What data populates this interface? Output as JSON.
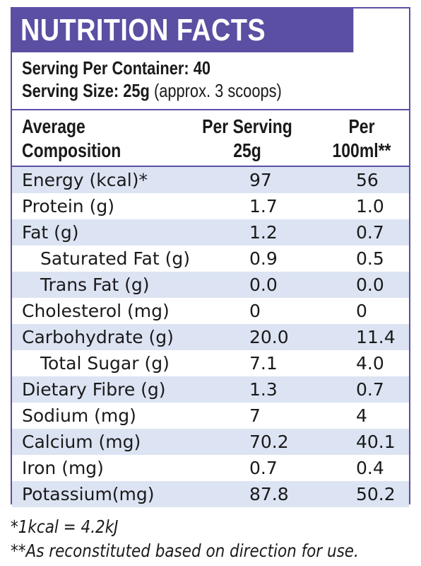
{
  "header": {
    "title": "NUTRITION FACTS"
  },
  "serving": {
    "per_container_label": "Serving Per Container: 40",
    "size_label": "Serving Size: 25g",
    "size_note": "(approx. 3 scoops)"
  },
  "columns": {
    "c1_line1": "Average",
    "c1_line2": "Composition",
    "c2_line1": "Per Serving",
    "c2_line2": "25g",
    "c3_line1": "Per",
    "c3_line2": "100ml**"
  },
  "rows": [
    {
      "name": "Energy (kcal)*",
      "per_serving": "97",
      "per_100ml": "56",
      "indent": false,
      "shaded": true
    },
    {
      "name": "Protein (g)",
      "per_serving": "1.7",
      "per_100ml": "1.0",
      "indent": false,
      "shaded": false
    },
    {
      "name": "Fat (g)",
      "per_serving": "1.2",
      "per_100ml": "0.7",
      "indent": false,
      "shaded": true
    },
    {
      "name": "Saturated Fat (g)",
      "per_serving": "0.9",
      "per_100ml": "0.5",
      "indent": true,
      "shaded": false
    },
    {
      "name": "Trans Fat (g)",
      "per_serving": "0.0",
      "per_100ml": "0.0",
      "indent": true,
      "shaded": true
    },
    {
      "name": "Cholesterol (mg)",
      "per_serving": "0",
      "per_100ml": "0",
      "indent": false,
      "shaded": false
    },
    {
      "name": "Carbohydrate (g)",
      "per_serving": "20.0",
      "per_100ml": "11.4",
      "indent": false,
      "shaded": true
    },
    {
      "name": "Total Sugar (g)",
      "per_serving": "7.1",
      "per_100ml": "4.0",
      "indent": true,
      "shaded": false
    },
    {
      "name": "Dietary Fibre (g)",
      "per_serving": "1.3",
      "per_100ml": "0.7",
      "indent": false,
      "shaded": true
    },
    {
      "name": "Sodium (mg)",
      "per_serving": "7",
      "per_100ml": "4",
      "indent": false,
      "shaded": false
    },
    {
      "name": "Calcium (mg)",
      "per_serving": "70.2",
      "per_100ml": "40.1",
      "indent": false,
      "shaded": true
    },
    {
      "name": "Iron (mg)",
      "per_serving": "0.7",
      "per_100ml": "0.4",
      "indent": false,
      "shaded": false
    },
    {
      "name": "Potassium(mg)",
      "per_serving": "87.8",
      "per_100ml": "50.2",
      "indent": false,
      "shaded": true
    }
  ],
  "footnotes": {
    "kcal": "*1kcal = 4.2kJ",
    "reconstituted": "**As reconstituted based on direction for use."
  },
  "colors": {
    "accent": "#5a4fa2",
    "row_shade": "#dce4f3"
  }
}
